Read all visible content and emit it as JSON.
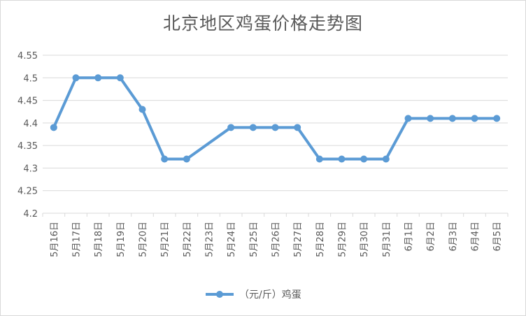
{
  "chart_data": {
    "type": "line",
    "title": "北京地区鸡蛋价格走势图",
    "categories": [
      "5月16日",
      "5月17日",
      "5月18日",
      "5月19日",
      "5月20日",
      "5月21日",
      "5月22日",
      "5月23日",
      "5月24日",
      "5月25日",
      "5月26日",
      "5月27日",
      "5月28日",
      "5月29日",
      "5月30日",
      "5月31日",
      "6月1日",
      "6月2日",
      "6月3日",
      "6月4日",
      "6月5日"
    ],
    "series": [
      {
        "name": "（元/斤）鸡蛋",
        "values": [
          4.39,
          4.5,
          4.5,
          4.5,
          4.43,
          4.32,
          4.32,
          null,
          4.39,
          4.39,
          4.39,
          4.39,
          4.32,
          4.32,
          4.32,
          4.32,
          4.41,
          4.41,
          4.41,
          4.41,
          4.41
        ],
        "color": "#5B9BD5"
      }
    ],
    "yticks": [
      "4.2",
      "4.25",
      "4.3",
      "4.35",
      "4.4",
      "4.45",
      "4.5",
      "4.55"
    ],
    "ylim": [
      4.2,
      4.55
    ],
    "xlabel": "",
    "ylabel": "",
    "grid": true,
    "gap_handling": "connect",
    "legend_position": "bottom",
    "marker": "circle"
  }
}
